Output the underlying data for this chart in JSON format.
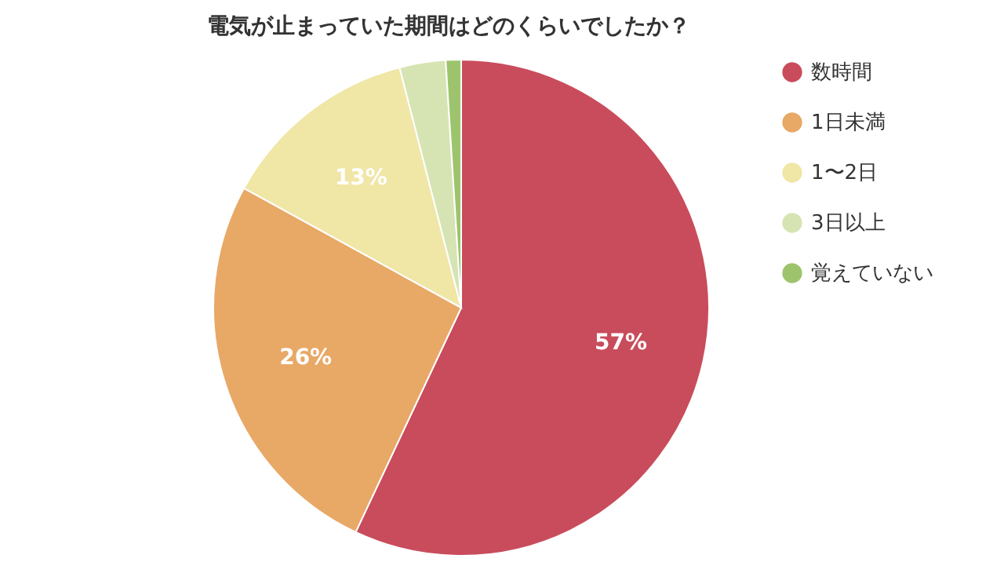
{
  "chart_data": {
    "type": "pie",
    "title": "電気が止まっていた期間はどのくらいでしたか？",
    "categories": [
      "数時間",
      "1日未満",
      "1〜2日",
      "3日以上",
      "覚えていない"
    ],
    "values": [
      57,
      26,
      13,
      3,
      1
    ],
    "colors": [
      "#c94c5c",
      "#e8a866",
      "#f0e6a6",
      "#d6e4b4",
      "#9dc46c"
    ],
    "value_labels": [
      "57%",
      "26%",
      "13%",
      null,
      null
    ],
    "legend": "right"
  }
}
